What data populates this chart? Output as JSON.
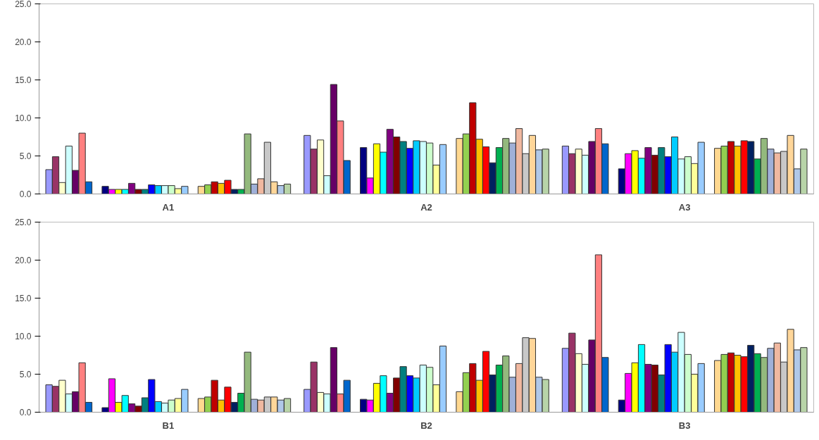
{
  "chart_data": [
    {
      "type": "bar",
      "categories": [
        "A1",
        "A2",
        "A3"
      ],
      "ylim": [
        0,
        25
      ],
      "yticks": [
        {
          "value": 0,
          "label": "0.0"
        },
        {
          "value": 5,
          "label": "5.0"
        },
        {
          "value": 10,
          "label": "10.0"
        },
        {
          "value": 15,
          "label": "15.0"
        },
        {
          "value": 20,
          "label": "20.0"
        },
        {
          "value": 25,
          "label": "25.0"
        }
      ],
      "grid": false,
      "series": [
        {
          "color": "#9999ff",
          "values": [
            3.2,
            7.7,
            6.3
          ]
        },
        {
          "color": "#993366",
          "values": [
            4.9,
            5.9,
            5.3
          ]
        },
        {
          "color": "#ffffcc",
          "values": [
            1.5,
            7.1,
            5.9
          ]
        },
        {
          "color": "#ccffff",
          "values": [
            6.3,
            2.4,
            5.1
          ]
        },
        {
          "color": "#660066",
          "values": [
            3.1,
            14.4,
            6.9
          ]
        },
        {
          "color": "#ff8080",
          "values": [
            8.0,
            9.6,
            8.6
          ]
        },
        {
          "color": "#0066cc",
          "values": [
            1.6,
            4.4,
            6.6
          ]
        },
        {
          "color": "#000080",
          "values": [
            1.0,
            6.1,
            3.3
          ]
        },
        {
          "color": "#ff00ff",
          "values": [
            0.6,
            2.1,
            5.3
          ]
        },
        {
          "color": "#ffff00",
          "values": [
            0.6,
            6.6,
            5.7
          ]
        },
        {
          "color": "#00ffff",
          "values": [
            0.6,
            5.5,
            4.7
          ]
        },
        {
          "color": "#800080",
          "values": [
            1.4,
            8.5,
            6.1
          ]
        },
        {
          "color": "#800000",
          "values": [
            0.6,
            7.5,
            5.1
          ]
        },
        {
          "color": "#008080",
          "values": [
            0.6,
            6.9,
            6.1
          ]
        },
        {
          "color": "#0000ff",
          "values": [
            1.2,
            6.0,
            4.9
          ]
        },
        {
          "color": "#00ccff",
          "values": [
            1.1,
            7.0,
            7.5
          ]
        },
        {
          "color": "#ccffff",
          "values": [
            1.1,
            6.9,
            4.6
          ]
        },
        {
          "color": "#ccffcc",
          "values": [
            1.1,
            6.7,
            4.9
          ]
        },
        {
          "color": "#ffff99",
          "values": [
            0.7,
            3.8,
            4.0
          ]
        },
        {
          "color": "#99ccff",
          "values": [
            1.0,
            6.5,
            6.8
          ]
        },
        {
          "color": "#ffd890",
          "values": [
            1.0,
            7.3,
            6.0
          ]
        },
        {
          "color": "#92d050",
          "values": [
            1.2,
            7.9,
            6.3
          ]
        },
        {
          "color": "#c00000",
          "values": [
            1.6,
            12.0,
            6.9
          ]
        },
        {
          "color": "#ffc000",
          "values": [
            1.4,
            7.2,
            6.3
          ]
        },
        {
          "color": "#ff0000",
          "values": [
            1.8,
            6.2,
            7.0
          ]
        },
        {
          "color": "#002060",
          "values": [
            0.6,
            4.1,
            6.9
          ]
        },
        {
          "color": "#00b050",
          "values": [
            0.6,
            6.1,
            4.6
          ]
        },
        {
          "color": "#93b97d",
          "values": [
            7.9,
            7.3,
            7.3
          ]
        },
        {
          "color": "#a0b0d8",
          "values": [
            1.3,
            6.7,
            5.9
          ]
        },
        {
          "color": "#f0b8a0",
          "values": [
            2.0,
            8.6,
            5.4
          ]
        },
        {
          "color": "#c8c8c8",
          "values": [
            6.8,
            5.3,
            5.6
          ]
        },
        {
          "color": "#ffd699",
          "values": [
            1.6,
            7.7,
            7.7
          ]
        },
        {
          "color": "#b0c8e8",
          "values": [
            1.1,
            5.8,
            3.3
          ]
        },
        {
          "color": "#b8d4a8",
          "values": [
            1.3,
            5.9,
            5.9
          ]
        }
      ]
    },
    {
      "type": "bar",
      "categories": [
        "B1",
        "B2",
        "B3"
      ],
      "ylim": [
        0,
        25
      ],
      "yticks": [
        {
          "value": 0,
          "label": "0.0"
        },
        {
          "value": 5,
          "label": "5.0"
        },
        {
          "value": 10,
          "label": "10.0"
        },
        {
          "value": 15,
          "label": "15.0"
        },
        {
          "value": 20,
          "label": "20.0"
        },
        {
          "value": 25,
          "label": "25.0"
        }
      ],
      "grid": false,
      "series": [
        {
          "color": "#9999ff",
          "values": [
            3.6,
            3.0,
            8.4
          ]
        },
        {
          "color": "#993366",
          "values": [
            3.4,
            6.6,
            10.4
          ]
        },
        {
          "color": "#ffffcc",
          "values": [
            4.2,
            2.6,
            7.7
          ]
        },
        {
          "color": "#ccffff",
          "values": [
            2.4,
            2.4,
            6.3
          ]
        },
        {
          "color": "#660066",
          "values": [
            2.7,
            8.5,
            9.5
          ]
        },
        {
          "color": "#ff8080",
          "values": [
            6.5,
            2.4,
            20.7
          ]
        },
        {
          "color": "#0066cc",
          "values": [
            1.3,
            4.2,
            7.2
          ]
        },
        {
          "color": "#000080",
          "values": [
            0.6,
            1.7,
            1.6
          ]
        },
        {
          "color": "#ff00ff",
          "values": [
            4.4,
            1.6,
            5.1
          ]
        },
        {
          "color": "#ffff00",
          "values": [
            1.3,
            3.8,
            6.5
          ]
        },
        {
          "color": "#00ffff",
          "values": [
            2.2,
            4.8,
            8.9
          ]
        },
        {
          "color": "#800080",
          "values": [
            1.1,
            2.5,
            6.3
          ]
        },
        {
          "color": "#800000",
          "values": [
            0.8,
            4.5,
            6.2
          ]
        },
        {
          "color": "#008080",
          "values": [
            1.9,
            6.0,
            4.9
          ]
        },
        {
          "color": "#0000ff",
          "values": [
            4.3,
            4.8,
            8.9
          ]
        },
        {
          "color": "#00ccff",
          "values": [
            1.4,
            4.5,
            7.9
          ]
        },
        {
          "color": "#ccffff",
          "values": [
            1.2,
            6.2,
            10.5
          ]
        },
        {
          "color": "#ccffcc",
          "values": [
            1.6,
            5.9,
            7.6
          ]
        },
        {
          "color": "#ffff99",
          "values": [
            1.8,
            3.6,
            5.0
          ]
        },
        {
          "color": "#99ccff",
          "values": [
            3.0,
            8.7,
            6.4
          ]
        },
        {
          "color": "#ffd890",
          "values": [
            1.8,
            2.7,
            6.8
          ]
        },
        {
          "color": "#92d050",
          "values": [
            2.0,
            5.2,
            7.6
          ]
        },
        {
          "color": "#c00000",
          "values": [
            4.2,
            6.4,
            7.8
          ]
        },
        {
          "color": "#ffc000",
          "values": [
            1.6,
            4.2,
            7.5
          ]
        },
        {
          "color": "#ff0000",
          "values": [
            3.3,
            8.0,
            7.3
          ]
        },
        {
          "color": "#002060",
          "values": [
            1.3,
            4.9,
            8.8
          ]
        },
        {
          "color": "#00b050",
          "values": [
            2.5,
            6.2,
            7.7
          ]
        },
        {
          "color": "#93b97d",
          "values": [
            7.9,
            7.4,
            7.2
          ]
        },
        {
          "color": "#a0b0d8",
          "values": [
            1.7,
            4.6,
            8.4
          ]
        },
        {
          "color": "#f0b8a0",
          "values": [
            1.6,
            6.4,
            9.1
          ]
        },
        {
          "color": "#c8c8c8",
          "values": [
            2.0,
            9.8,
            6.6
          ]
        },
        {
          "color": "#ffd699",
          "values": [
            2.0,
            9.7,
            10.9
          ]
        },
        {
          "color": "#b0c8e8",
          "values": [
            1.6,
            4.6,
            8.2
          ]
        },
        {
          "color": "#b8d4a8",
          "values": [
            1.8,
            4.3,
            8.5
          ]
        }
      ]
    }
  ]
}
